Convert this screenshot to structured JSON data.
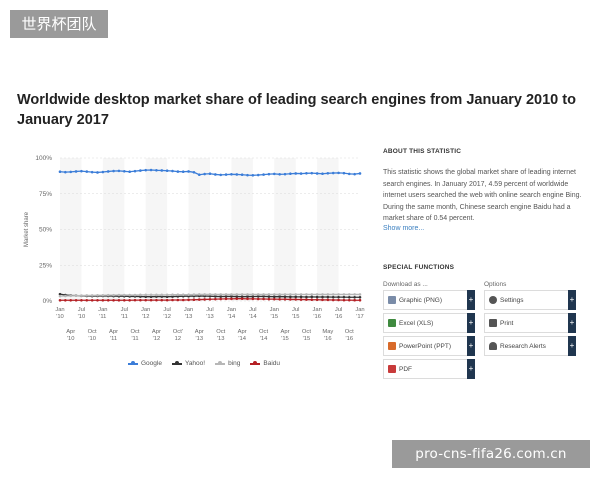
{
  "watermark_top": "世界杯团队",
  "watermark_bottom": "pro-cns-fifa26.com.cn",
  "title": "Worldwide desktop market share of leading search engines from January 2010 to January 2017",
  "about": {
    "heading": "ABOUT THIS STATISTIC",
    "text": "This statistic shows the global market share of leading internet search engines. In January 2017, 4.59 percent of worldwide internet users searched the web with online search engine Bing. During the same month, Chinese search engine Baidu had a market share of 0.54 percent.",
    "more": "Show more..."
  },
  "special": {
    "heading": "SPECIAL FUNCTIONS",
    "download_label": "Download as ...",
    "options_label": "Options",
    "download": [
      {
        "label": "Graphic (PNG)",
        "icon": "image-icon"
      },
      {
        "label": "Excel (XLS)",
        "icon": "excel-icon"
      },
      {
        "label": "PowerPoint (PPT)",
        "icon": "powerpoint-icon"
      },
      {
        "label": "PDF",
        "icon": "pdf-icon"
      }
    ],
    "options": [
      {
        "label": "Settings",
        "icon": "gear-icon"
      },
      {
        "label": "Print",
        "icon": "printer-icon"
      },
      {
        "label": "Research Alerts",
        "icon": "bell-icon"
      }
    ]
  },
  "chart_data": {
    "type": "line",
    "title": "Worldwide desktop market share of leading search engines from January 2010 to January 2017",
    "xlabel": "",
    "ylabel": "Market share",
    "ylim": [
      0,
      100
    ],
    "yticks": [
      "0%",
      "25%",
      "50%",
      "75%",
      "100%"
    ],
    "x_top": [
      "Jan '10",
      "Jul '10",
      "Jan '11",
      "Jul '11",
      "Jan '12",
      "Jul '12",
      "Jan '13",
      "Jul '13",
      "Jan '14",
      "Jul '14",
      "Jan '15",
      "Jul '15",
      "Jan '16",
      "Jul '16",
      "Jan '17"
    ],
    "x_bottom": [
      "Apr '10",
      "Oct '10",
      "Apr '11",
      "Oct '11",
      "Apr '12",
      "Oct' 12",
      "Apr '13",
      "Oct '13",
      "Apr '14",
      "Oct '14",
      "Apr '15",
      "Oct '15",
      "May '16",
      "Oct '16"
    ],
    "grid": true,
    "legend": "bottom",
    "series": [
      {
        "name": "Google",
        "color": "#3b7dd8",
        "values": [
          90.4,
          90.1,
          90.3,
          90.6,
          90.8,
          90.5,
          90.1,
          89.9,
          90.2,
          90.6,
          90.9,
          91.0,
          90.7,
          90.4,
          90.8,
          91.2,
          91.5,
          91.6,
          91.4,
          91.3,
          91.1,
          90.9,
          90.5,
          90.4,
          90.6,
          90.0,
          88.3,
          88.8,
          89.0,
          88.5,
          88.2,
          88.4,
          88.6,
          88.5,
          88.3,
          88.0,
          87.9,
          88.1,
          88.4,
          88.7,
          88.9,
          88.6,
          88.7,
          89.0,
          89.2,
          89.1,
          89.3,
          89.4,
          89.2,
          89.0,
          89.3,
          89.5,
          89.6,
          89.4,
          88.9,
          88.7,
          89.2
        ]
      },
      {
        "name": "Yahoo!",
        "color": "#333333",
        "values": [
          4.8,
          4.2,
          3.9,
          3.8,
          3.6,
          3.5,
          3.4,
          3.5,
          3.5,
          3.5,
          3.4,
          3.3,
          3.3,
          3.2,
          3.2,
          3.1,
          3.0,
          3.0,
          3.1,
          3.1,
          3.0,
          3.1,
          3.2,
          3.3,
          3.3,
          3.4,
          3.5,
          3.4,
          3.3,
          3.2,
          3.1,
          3.2,
          3.2,
          3.1,
          3.0,
          3.1,
          3.1,
          3.2,
          3.2,
          3.1,
          3.0,
          3.1,
          3.0,
          2.9,
          2.9,
          2.9,
          2.8,
          2.9,
          2.8,
          2.8,
          2.8,
          2.7,
          2.7,
          2.7,
          2.6,
          2.6,
          2.6
        ]
      },
      {
        "name": "bing",
        "color": "#b7b7b7",
        "values": [
          3.4,
          3.5,
          3.6,
          3.7,
          3.8,
          3.9,
          3.9,
          4.0,
          4.0,
          4.1,
          4.1,
          4.2,
          4.2,
          4.2,
          4.2,
          4.3,
          4.3,
          4.3,
          4.3,
          4.3,
          4.3,
          4.4,
          4.4,
          4.4,
          4.4,
          4.5,
          4.6,
          4.6,
          4.6,
          4.6,
          4.6,
          4.6,
          4.6,
          4.6,
          4.6,
          4.6,
          4.6,
          4.6,
          4.6,
          4.6,
          4.6,
          4.6,
          4.6,
          4.6,
          4.6,
          4.6,
          4.6,
          4.6,
          4.6,
          4.6,
          4.6,
          4.6,
          4.6,
          4.6,
          4.6,
          4.6,
          4.59
        ]
      },
      {
        "name": "Baidu",
        "color": "#b41f24",
        "values": [
          0.5,
          0.5,
          0.5,
          0.5,
          0.5,
          0.5,
          0.5,
          0.5,
          0.5,
          0.5,
          0.5,
          0.5,
          0.5,
          0.5,
          0.6,
          0.6,
          0.6,
          0.6,
          0.6,
          0.6,
          0.6,
          0.7,
          0.7,
          0.7,
          0.8,
          0.9,
          1.0,
          1.1,
          1.2,
          1.3,
          1.4,
          1.5,
          1.5,
          1.6,
          1.6,
          1.5,
          1.5,
          1.4,
          1.4,
          1.3,
          1.3,
          1.2,
          1.2,
          1.1,
          1.1,
          1.0,
          1.0,
          0.9,
          0.9,
          0.8,
          0.8,
          0.7,
          0.7,
          0.6,
          0.6,
          0.55,
          0.54
        ]
      }
    ]
  }
}
